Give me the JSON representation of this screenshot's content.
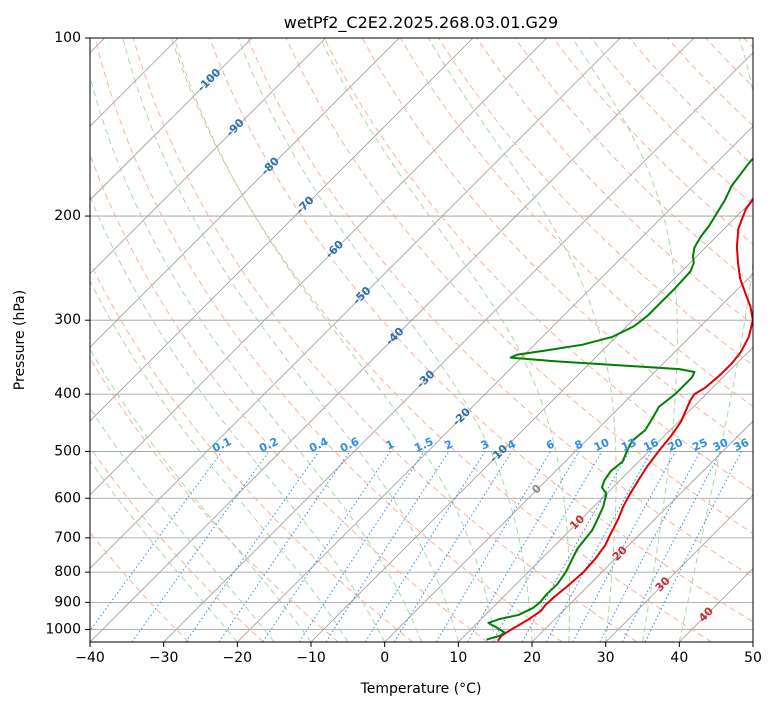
{
  "chart_data": {
    "type": "line",
    "diagram": "skew-T log-P",
    "title": "wetPf2_C2E2.2025.268.03.01.G29",
    "xlabel": "Temperature (°C)",
    "ylabel": "Pressure (hPa)",
    "xlim": [
      -40,
      50
    ],
    "ylim": [
      1050,
      100
    ],
    "x_ticks": [
      -40,
      -30,
      -20,
      -10,
      0,
      10,
      20,
      30,
      40,
      50
    ],
    "x_tick_labels": [
      "−40",
      "−30",
      "−20",
      "−10",
      "0",
      "10",
      "20",
      "30",
      "40",
      "50"
    ],
    "y_ticks": [
      100,
      200,
      300,
      400,
      500,
      600,
      700,
      800,
      900,
      1000
    ],
    "y_tick_labels": [
      "100",
      "200",
      "300",
      "400",
      "500",
      "600",
      "700",
      "800",
      "900",
      "1000"
    ],
    "grid": true,
    "colors": {
      "temperature": "#e00000",
      "dewpoint": "#008000",
      "isotherm": "#999999",
      "dry_adiabat": "#f7a58a",
      "moist_adiabat": "#9fd49f",
      "mixing_ratio": "#2b8ee6",
      "isotherm_label": "#2a6fa8",
      "freezing_label": "#888888",
      "warm_label": "#cc2a2a"
    },
    "series": [
      {
        "name": "Temperature",
        "points": [
          [
            15.2,
            1045
          ],
          [
            15.0,
            1025
          ],
          [
            15.5,
            1000
          ],
          [
            16.5,
            960
          ],
          [
            17.0,
            930
          ],
          [
            16.8,
            910
          ],
          [
            16.9,
            880
          ],
          [
            17.2,
            850
          ],
          [
            17.5,
            800
          ],
          [
            17.3,
            760
          ],
          [
            16.8,
            720
          ],
          [
            16.0,
            690
          ],
          [
            15.0,
            650
          ],
          [
            14.0,
            620
          ],
          [
            13.2,
            590
          ],
          [
            12.5,
            560
          ],
          [
            11.8,
            530
          ],
          [
            11.3,
            500
          ],
          [
            10.9,
            470
          ],
          [
            10.3,
            445
          ],
          [
            9.4,
            425
          ],
          [
            8.7,
            410
          ],
          [
            8.4,
            400
          ],
          [
            9.0,
            390
          ],
          [
            9.3,
            370
          ],
          [
            9.3,
            355
          ],
          [
            9.0,
            340
          ],
          [
            8.0,
            320
          ],
          [
            6.3,
            300
          ],
          [
            4.2,
            285
          ],
          [
            1.6,
            270
          ],
          [
            -1.1,
            255
          ],
          [
            -3.5,
            240
          ],
          [
            -5.9,
            225
          ],
          [
            -8.1,
            210
          ],
          [
            -9.7,
            195
          ],
          [
            -10.3,
            185
          ],
          [
            -9.1,
            180
          ],
          [
            -6.5,
            172
          ],
          [
            -4.0,
            166
          ],
          [
            -2.4,
            150
          ],
          [
            -1.5,
            140
          ],
          [
            -0.8,
            130
          ],
          [
            0.3,
            120
          ],
          [
            1.8,
            112
          ],
          [
            3.3,
            106
          ],
          [
            5.0,
            100
          ]
        ]
      },
      {
        "name": "Dewpoint",
        "points": [
          [
            13.5,
            1040
          ],
          [
            14.8,
            1025
          ],
          [
            15.0,
            1012
          ],
          [
            13.0,
            990
          ],
          [
            11.5,
            975
          ],
          [
            12.5,
            960
          ],
          [
            14.5,
            945
          ],
          [
            15.5,
            920
          ],
          [
            15.7,
            900
          ],
          [
            15.5,
            870
          ],
          [
            15.6,
            840
          ],
          [
            15.1,
            800
          ],
          [
            14.2,
            760
          ],
          [
            13.5,
            730
          ],
          [
            13.3,
            710
          ],
          [
            13.0,
            680
          ],
          [
            12.2,
            650
          ],
          [
            11.3,
            620
          ],
          [
            10.0,
            590
          ],
          [
            8.5,
            575
          ],
          [
            7.9,
            560
          ],
          [
            7.5,
            540
          ],
          [
            7.8,
            520
          ],
          [
            7.0,
            500
          ],
          [
            6.3,
            480
          ],
          [
            6.6,
            460
          ],
          [
            6.0,
            440
          ],
          [
            5.3,
            420
          ],
          [
            5.8,
            400
          ],
          [
            5.8,
            390
          ],
          [
            5.8,
            375
          ],
          [
            5.4,
            367
          ],
          [
            3.0,
            363
          ],
          [
            -5.0,
            358
          ],
          [
            -15.0,
            352
          ],
          [
            -21.5,
            347
          ],
          [
            -21.0,
            343
          ],
          [
            -18.0,
            338
          ],
          [
            -13.5,
            330
          ],
          [
            -10.5,
            320
          ],
          [
            -9.0,
            307
          ],
          [
            -8.6,
            295
          ],
          [
            -8.6,
            280
          ],
          [
            -8.6,
            265
          ],
          [
            -8.8,
            248
          ],
          [
            -9.5,
            240
          ],
          [
            -10.5,
            234
          ],
          [
            -11.5,
            226
          ],
          [
            -12.1,
            217
          ],
          [
            -12.5,
            207
          ],
          [
            -13.1,
            198
          ],
          [
            -13.8,
            188
          ],
          [
            -14.8,
            178
          ],
          [
            -15.2,
            170
          ],
          [
            -15.6,
            162
          ],
          [
            -15.7,
            154
          ],
          [
            -15.7,
            146
          ],
          [
            -15.6,
            140
          ],
          [
            -14.6,
            130
          ],
          [
            -13.1,
            120
          ],
          [
            -11.1,
            110
          ],
          [
            -9.2,
            100
          ]
        ]
      }
    ],
    "isotherm_labels": [
      {
        "text": "-100",
        "t": -100,
        "p": 118
      },
      {
        "text": "-90",
        "t": -90,
        "p": 142
      },
      {
        "text": "-80",
        "t": -80,
        "p": 165
      },
      {
        "text": "-70",
        "t": -70,
        "p": 192
      },
      {
        "text": "-60",
        "t": -60,
        "p": 228
      },
      {
        "text": "-50",
        "t": -50,
        "p": 273
      },
      {
        "text": "-40",
        "t": -40,
        "p": 320
      },
      {
        "text": "-30",
        "t": -30,
        "p": 378
      },
      {
        "text": "-20",
        "t": -20,
        "p": 438
      },
      {
        "text": "-10",
        "t": -10,
        "p": 505
      },
      {
        "text": "0",
        "t": 0,
        "p": 580
      },
      {
        "text": "10",
        "t": 10,
        "p": 660
      },
      {
        "text": "20",
        "t": 20,
        "p": 745
      },
      {
        "text": "30",
        "t": 30,
        "p": 840
      },
      {
        "text": "40",
        "t": 40,
        "p": 945
      }
    ],
    "mixing_ratio_labels": [
      "0.1",
      "0.2",
      "0.4",
      "0.6",
      "1",
      "1.5",
      "2",
      "3",
      "4",
      "6",
      "8",
      "10",
      "13",
      "16",
      "20",
      "25",
      "30",
      "36"
    ],
    "mixing_ratio_label_pressure": 500,
    "mixing_ratio_values": [
      0.1,
      0.2,
      0.4,
      0.6,
      1,
      1.5,
      2,
      3,
      4,
      6,
      8,
      10,
      13,
      16,
      20,
      25,
      30,
      36
    ]
  }
}
